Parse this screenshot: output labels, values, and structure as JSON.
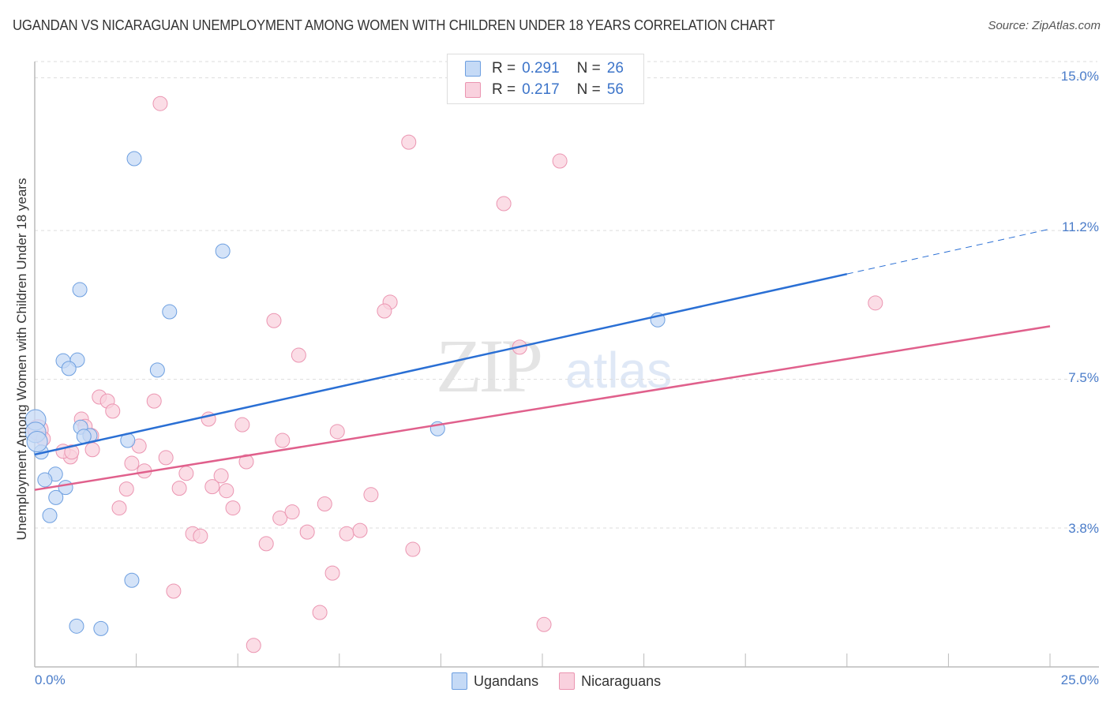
{
  "header": {
    "title": "UGANDAN VS NICARAGUAN UNEMPLOYMENT AMONG WOMEN WITH CHILDREN UNDER 18 YEARS CORRELATION CHART",
    "source": "Source: ZipAtlas.com"
  },
  "watermark": {
    "zip": "ZIP",
    "atlas": "atlas"
  },
  "axes": {
    "ylabel": "Unemployment Among Women with Children Under 18 years",
    "yticks": [
      "15.0%",
      "11.2%",
      "7.5%",
      "3.8%"
    ],
    "xtick_left": "0.0%",
    "xtick_right": "25.0%"
  },
  "legend_top": {
    "rows": [
      {
        "r_label": "R = ",
        "r_value": "0.291",
        "n_label": "N = ",
        "n_value": "26",
        "color": "#a9c9f2"
      },
      {
        "r_label": "R = ",
        "r_value": "0.217",
        "n_label": "N = ",
        "n_value": "56",
        "color": "#f7bfd0"
      }
    ]
  },
  "legend_bottom": {
    "items": [
      {
        "label": "Ugandans",
        "color": "#a9c9f2"
      },
      {
        "label": "Nicaraguans",
        "color": "#f7bfd0"
      }
    ]
  },
  "colors": {
    "blue_fill": "#c5daf6",
    "blue_stroke": "#6d9fe0",
    "blue_line": "#2a6fd4",
    "pink_fill": "#f9d1de",
    "pink_stroke": "#eb95b1",
    "pink_line": "#e0608c",
    "tick_text": "#4a7cc9",
    "grid": "#dddddd"
  },
  "chart_data": {
    "type": "scatter",
    "title": "UGANDAN VS NICARAGUAN UNEMPLOYMENT AMONG WOMEN WITH CHILDREN UNDER 18 YEARS CORRELATION CHART",
    "xlabel": "",
    "ylabel": "Unemployment Among Women with Children Under 18 years",
    "xlim": [
      0,
      25
    ],
    "ylim": [
      0.35,
      15.5
    ],
    "yticks": [
      3.8,
      7.5,
      11.2,
      15.0
    ],
    "xticks_labeled": [
      0,
      25
    ],
    "grid": true,
    "legend_position": "top-center",
    "series": [
      {
        "name": "Ugandans",
        "r": 0.291,
        "n": 26,
        "trend": {
          "x0": 0,
          "y0": 5.63,
          "x1": 20.0,
          "y1": 10.12,
          "dashed_to_x": 25.0,
          "dashed_to_y": 11.24
        },
        "points": [
          [
            2.45,
            12.99
          ],
          [
            4.63,
            10.69
          ],
          [
            1.11,
            9.73
          ],
          [
            3.32,
            9.18
          ],
          [
            15.34,
            8.98
          ],
          [
            0.7,
            7.96
          ],
          [
            1.05,
            7.98
          ],
          [
            0.84,
            7.77
          ],
          [
            3.02,
            7.73
          ],
          [
            0.02,
            6.49
          ],
          [
            1.13,
            6.31
          ],
          [
            1.36,
            6.1
          ],
          [
            1.21,
            6.08
          ],
          [
            2.29,
            5.98
          ],
          [
            9.92,
            6.27
          ],
          [
            0.16,
            5.69
          ],
          [
            0.51,
            5.14
          ],
          [
            0.25,
            5.0
          ],
          [
            0.76,
            4.81
          ],
          [
            0.52,
            4.56
          ],
          [
            0.37,
            4.11
          ],
          [
            2.39,
            2.5
          ],
          [
            1.03,
            1.36
          ],
          [
            1.63,
            1.3
          ],
          [
            0.02,
            6.18
          ],
          [
            0.06,
            5.95
          ]
        ]
      },
      {
        "name": "Nicaraguans",
        "r": 0.217,
        "n": 56,
        "trend": {
          "x0": 0,
          "y0": 4.75,
          "x1": 25.0,
          "y1": 8.82
        },
        "points": [
          [
            3.09,
            14.36
          ],
          [
            9.21,
            13.4
          ],
          [
            12.93,
            12.93
          ],
          [
            11.55,
            11.87
          ],
          [
            20.7,
            9.4
          ],
          [
            8.75,
            9.42
          ],
          [
            8.61,
            9.2
          ],
          [
            5.89,
            8.96
          ],
          [
            6.5,
            8.1
          ],
          [
            11.94,
            8.3
          ],
          [
            1.59,
            7.06
          ],
          [
            1.79,
            6.96
          ],
          [
            1.92,
            6.71
          ],
          [
            2.94,
            6.96
          ],
          [
            4.28,
            6.51
          ],
          [
            5.11,
            6.37
          ],
          [
            7.45,
            6.2
          ],
          [
            6.1,
            5.98
          ],
          [
            1.15,
            6.51
          ],
          [
            1.24,
            6.33
          ],
          [
            1.4,
            6.1
          ],
          [
            2.57,
            5.84
          ],
          [
            3.23,
            5.55
          ],
          [
            5.21,
            5.45
          ],
          [
            0.88,
            5.57
          ],
          [
            0.7,
            5.71
          ],
          [
            0.91,
            5.69
          ],
          [
            1.42,
            5.75
          ],
          [
            2.39,
            5.41
          ],
          [
            2.7,
            5.22
          ],
          [
            3.73,
            5.16
          ],
          [
            4.59,
            5.1
          ],
          [
            4.37,
            4.83
          ],
          [
            4.72,
            4.73
          ],
          [
            3.56,
            4.79
          ],
          [
            2.26,
            4.77
          ],
          [
            2.08,
            4.3
          ],
          [
            8.28,
            4.63
          ],
          [
            7.14,
            4.4
          ],
          [
            6.04,
            4.05
          ],
          [
            6.34,
            4.2
          ],
          [
            4.88,
            4.3
          ],
          [
            3.89,
            3.66
          ],
          [
            4.08,
            3.6
          ],
          [
            6.71,
            3.7
          ],
          [
            7.68,
            3.66
          ],
          [
            8.01,
            3.74
          ],
          [
            5.7,
            3.41
          ],
          [
            9.31,
            3.27
          ],
          [
            7.33,
            2.68
          ],
          [
            3.42,
            2.23
          ],
          [
            7.02,
            1.7
          ],
          [
            12.54,
            1.4
          ],
          [
            5.39,
            0.88
          ],
          [
            0.08,
            6.24
          ],
          [
            0.21,
            6.02
          ]
        ]
      }
    ]
  }
}
